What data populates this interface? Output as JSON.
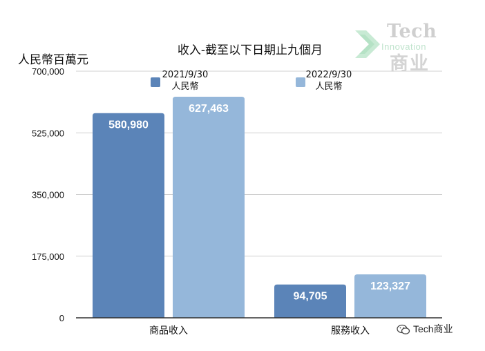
{
  "chart_data": {
    "type": "bar",
    "title": "收入-截至以下日期止九個月",
    "ylabel": "人民幣百萬元",
    "xlabel": "",
    "categories": [
      "商品收入",
      "服務收入"
    ],
    "series": [
      {
        "name": "2021/9/30\n人民幣",
        "values": [
          580980,
          94705
        ],
        "value_labels": [
          "580,980",
          "94,705"
        ],
        "color": "#5b84b8"
      },
      {
        "name": "2022/9/30\n人民幣",
        "values": [
          627463,
          123327
        ],
        "value_labels": [
          "627,463",
          "123,327"
        ],
        "color": "#95b7da"
      }
    ],
    "ylim": [
      0,
      700000
    ],
    "yticks": [
      0,
      175000,
      350000,
      525000,
      700000
    ],
    "ytick_labels": [
      "0",
      "175,000",
      "350,000",
      "525,000",
      "700,000"
    ],
    "grid": true,
    "legend": "top"
  },
  "watermark": {
    "line1": "Tech",
    "line2": "Innovation",
    "line3": "商业",
    "footer": "Tech商业",
    "mark_color": "#bfe3cc"
  }
}
